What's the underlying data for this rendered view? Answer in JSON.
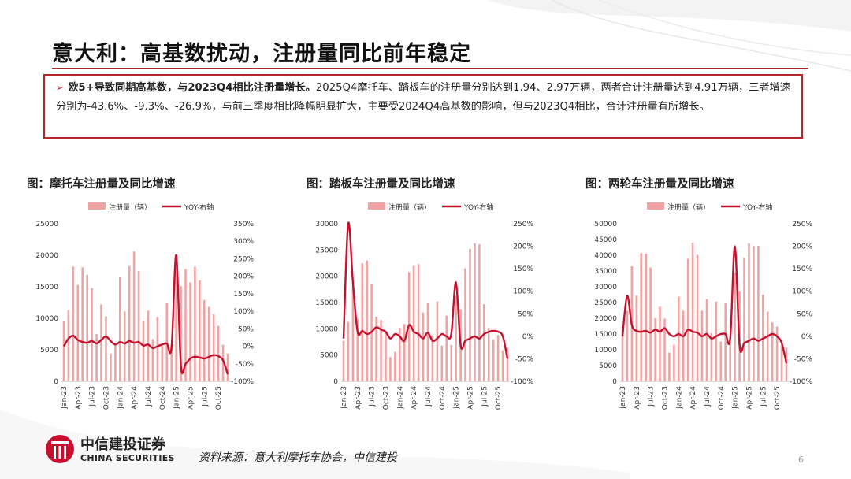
{
  "header": {
    "title": "意大利：高基数扰动，注册量同比前年稳定"
  },
  "summary": {
    "lead": "欧5+导致同期高基数，与2023Q4相比注册量增长。",
    "body": "2025Q4摩托车、踏板车的注册量分别达到1.94、2.97万辆，两者合计注册量达到4.91万辆，三者增速分别为-43.6%、-9.3%、-26.9%，与前三季度相比降幅明显扩大，主要受2024Q4高基数的影响，但与2023Q4相比，合计注册量有所增长。"
  },
  "colors": {
    "bar": "#f0a3a3",
    "line": "#c8102e",
    "border": "#b2282d"
  },
  "chart_data": [
    {
      "type": "bar",
      "title": "图：摩托车注册量及同比增速",
      "legend": {
        "bar": "注册量（辆）",
        "line": "YOY-右轴"
      },
      "x_tick_labels": [
        "Jan-23",
        "Apr-23",
        "Jul-23",
        "Oct-23",
        "Jan-24",
        "Apr-24",
        "Jul-24",
        "Oct-24",
        "Jan-25",
        "Apr-25",
        "Jul-25",
        "Oct-25"
      ],
      "ylim_left": [
        0,
        25000
      ],
      "left_ticks": [
        0,
        5000,
        10000,
        15000,
        20000,
        25000
      ],
      "ylim_right": [
        -100,
        350
      ],
      "right_ticks": [
        -100,
        -50,
        0,
        50,
        100,
        150,
        200,
        250,
        300,
        350
      ],
      "values": [
        9500,
        11300,
        18200,
        15300,
        18100,
        16900,
        14800,
        7500,
        12200,
        10300,
        4400,
        5900,
        16500,
        11100,
        18300,
        20600,
        17500,
        9600,
        11200,
        6700,
        10200,
        5600,
        12500,
        5700,
        18100,
        15100,
        17800,
        15700,
        18200,
        16000,
        12900,
        11800,
        10700,
        8800,
        5800,
        4400
      ],
      "yoy": [
        0,
        22,
        30,
        18,
        12,
        10,
        15,
        8,
        18,
        28,
        15,
        5,
        12,
        8,
        15,
        10,
        12,
        2,
        5,
        -5,
        0,
        5,
        8,
        -3,
        260,
        -55,
        -50,
        -35,
        -30,
        -32,
        -35,
        -30,
        -25,
        -28,
        -40,
        -80
      ]
    },
    {
      "type": "bar",
      "title": "图：踏板车注册量及同比增速",
      "legend": {
        "bar": "注册量（辆）",
        "line": "YOY-右轴"
      },
      "x_tick_labels": [
        "Jan-23",
        "Apr-23",
        "Jul-23",
        "Oct-23",
        "Jan-24",
        "Apr-24",
        "Jul-24",
        "Oct-24",
        "Jan-25",
        "Apr-25",
        "Jul-25",
        "Oct-25"
      ],
      "ylim_left": [
        0,
        30000
      ],
      "left_ticks": [
        0,
        5000,
        10000,
        15000,
        20000,
        25000,
        30000
      ],
      "ylim_right": [
        -100,
        250
      ],
      "right_ticks": [
        -100,
        -50,
        0,
        50,
        100,
        150,
        200,
        250
      ],
      "values": [
        7700,
        11300,
        18200,
        11800,
        22500,
        23000,
        18600,
        12300,
        11700,
        9600,
        4600,
        5600,
        10200,
        10900,
        20800,
        22000,
        22300,
        13100,
        15000,
        8700,
        15200,
        6800,
        12500,
        6900,
        16300,
        13700,
        21500,
        25200,
        26300,
        26100,
        14700,
        10200,
        8000,
        8800,
        5900,
        6400
      ],
      "yoy": [
        -5,
        250,
        120,
        10,
        12,
        5,
        10,
        20,
        15,
        10,
        -5,
        5,
        0,
        -10,
        25,
        10,
        5,
        -5,
        8,
        -10,
        -5,
        5,
        0,
        5,
        120,
        -20,
        -10,
        -5,
        0,
        -5,
        5,
        10,
        12,
        10,
        0,
        -50
      ]
    },
    {
      "type": "bar",
      "title": "图：两轮车注册量及同比增速",
      "legend": {
        "bar": "注册量（辆）",
        "line": "YOY-右轴"
      },
      "x_tick_labels": [
        "Jan-23",
        "Apr-23",
        "Jul-23",
        "Oct-23",
        "Jan-24",
        "Apr-24",
        "Jul-24",
        "Oct-24",
        "Jan-25",
        "Apr-25",
        "Jul-25",
        "Oct-25"
      ],
      "ylim_left": [
        0,
        50000
      ],
      "left_ticks": [
        0,
        5000,
        10000,
        15000,
        20000,
        25000,
        30000,
        35000,
        40000,
        45000,
        50000
      ],
      "ylim_right": [
        -100,
        250
      ],
      "right_ticks": [
        -100,
        -50,
        0,
        50,
        100,
        150,
        200,
        250
      ],
      "values": [
        17200,
        22400,
        36500,
        27200,
        40700,
        40500,
        36100,
        20000,
        23700,
        19900,
        9100,
        11600,
        26900,
        22400,
        38900,
        44000,
        40100,
        22400,
        26100,
        15300,
        25300,
        12600,
        25000,
        12600,
        34400,
        28500,
        39200,
        43800,
        42900,
        43000,
        27500,
        22100,
        18700,
        17400,
        11700,
        10700
      ],
      "yoy": [
        0,
        90,
        25,
        12,
        10,
        12,
        8,
        15,
        10,
        18,
        5,
        0,
        5,
        0,
        15,
        10,
        8,
        0,
        5,
        -5,
        0,
        5,
        5,
        -5,
        200,
        -20,
        -15,
        -10,
        -5,
        -10,
        -5,
        0,
        5,
        0,
        -15,
        -60
      ]
    }
  ],
  "footer": {
    "logo_cn": "中信建投证券",
    "logo_en": "CHINA SECURITIES",
    "source": "资料来源：意大利摩托车协会，中信建投",
    "page": "6"
  }
}
